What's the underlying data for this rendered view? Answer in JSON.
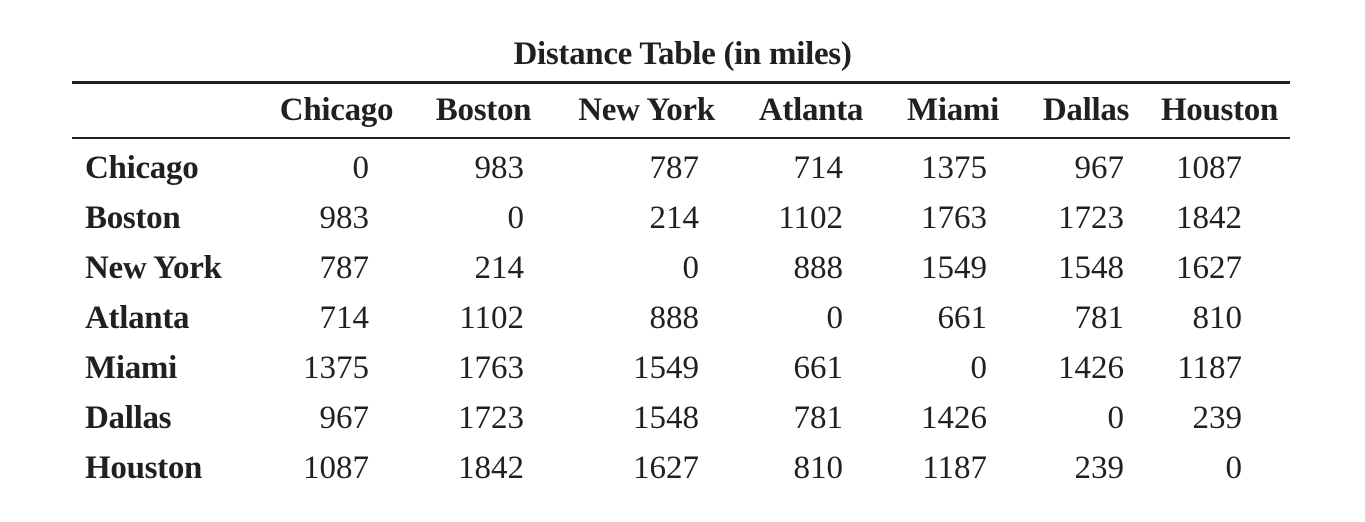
{
  "title": "Distance Table (in miles)",
  "table": {
    "corner": "",
    "columns": [
      "Chicago",
      "Boston",
      "New York",
      "Atlanta",
      "Miami",
      "Dallas",
      "Houston"
    ],
    "rows": [
      {
        "label": "Chicago",
        "values": [
          "0",
          "983",
          "787",
          "714",
          "1375",
          "967",
          "1087"
        ]
      },
      {
        "label": "Boston",
        "values": [
          "983",
          "0",
          "214",
          "1102",
          "1763",
          "1723",
          "1842"
        ]
      },
      {
        "label": "New York",
        "values": [
          "787",
          "214",
          "0",
          "888",
          "1549",
          "1548",
          "1627"
        ]
      },
      {
        "label": "Atlanta",
        "values": [
          "714",
          "1102",
          "888",
          "0",
          "661",
          "781",
          "810"
        ]
      },
      {
        "label": "Miami",
        "values": [
          "1375",
          "1763",
          "1549",
          "661",
          "0",
          "1426",
          "1187"
        ]
      },
      {
        "label": "Dallas",
        "values": [
          "967",
          "1723",
          "1548",
          "781",
          "1426",
          "0",
          "239"
        ]
      },
      {
        "label": "Houston",
        "values": [
          "1087",
          "1842",
          "1627",
          "810",
          "1187",
          "239",
          "0"
        ]
      }
    ]
  }
}
